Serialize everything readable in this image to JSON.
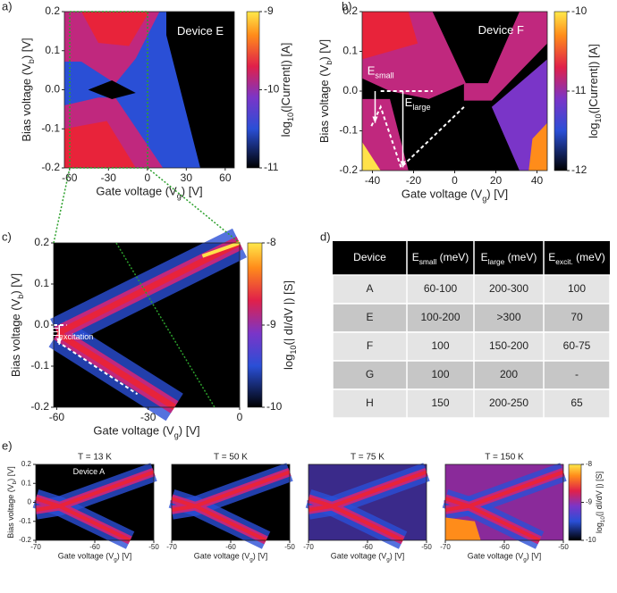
{
  "chart_data": [
    {
      "type": "heatmap",
      "label": "a)",
      "xlim": [
        -64,
        67
      ],
      "ylim": [
        -0.2,
        0.2
      ],
      "xticks": [
        -60,
        -30,
        0,
        30,
        60
      ],
      "yticks": [
        0.2,
        0.1,
        {
          "value": 0,
          "label": "0.0"
        },
        -0.1,
        -0.2
      ],
      "x_label": {
        "text": "Gate voltage (V",
        "sub": "g",
        "tail": ") [V]"
      },
      "y_label": {
        "text": "Bias voltage (V",
        "sub": "b",
        "tail": ") [V]"
      },
      "colorbar": {
        "lim": [
          -11,
          -9
        ],
        "ticks": [
          -9,
          -10,
          -11
        ],
        "label": {
          "text": "log",
          "sub": "10",
          "tail": "(|Current|) [A]"
        }
      },
      "annotations": [
        "Device E"
      ]
    },
    {
      "type": "heatmap",
      "label": "b)",
      "xlim": [
        -45,
        45
      ],
      "ylim": [
        -0.2,
        0.2
      ],
      "xticks": [
        -40,
        -20,
        0,
        20,
        40
      ],
      "yticks": [
        0.2,
        0.1,
        {
          "value": 0,
          "label": "0.0"
        },
        -0.1,
        -0.2
      ],
      "x_label": {
        "text": "Gate voltage (V",
        "sub": "g",
        "tail": ") [V]"
      },
      "y_label": {
        "text": "Bias voltage (V",
        "sub": "b",
        "tail": ") [V]"
      },
      "colorbar": {
        "lim": [
          -12,
          -10
        ],
        "ticks": [
          -10,
          -11,
          -12
        ],
        "label": {
          "text": "log",
          "sub": "10",
          "tail": "(|Current|) [A]"
        }
      },
      "annotations": [
        "Device F",
        {
          "text": "E",
          "sub": "small"
        },
        {
          "text": "E",
          "sub": "large"
        }
      ]
    },
    {
      "type": "heatmap",
      "label": "c)",
      "xlim": [
        -61,
        0
      ],
      "ylim": [
        -0.2,
        0.2
      ],
      "xticks": [
        -60,
        -30,
        0
      ],
      "yticks": [
        0.2,
        0.1,
        {
          "value": 0,
          "label": "0.0"
        },
        -0.1,
        -0.2
      ],
      "x_label": {
        "text": "Gate voltage (V",
        "sub": "g",
        "tail": ") [V]"
      },
      "y_label": {
        "text": "Bias voltage (V",
        "sub": "b",
        "tail": ") [V]"
      },
      "colorbar": {
        "lim": [
          -10,
          -8
        ],
        "ticks": [
          -8,
          -9,
          -10
        ],
        "label": {
          "text": "log",
          "sub": "10",
          "tail": "(| dI/dV |) [S]"
        }
      },
      "annotations": [
        {
          "text": "E",
          "sub": "excitation"
        }
      ]
    },
    {
      "type": "heatmap",
      "label": "e)",
      "title": "T = 13 K",
      "xlim": [
        -70,
        -50
      ],
      "ylim": [
        -0.2,
        0.2
      ],
      "xticks": [
        -70,
        -60,
        -50
      ],
      "yticks": [
        0.2,
        0.1,
        0,
        -0.1,
        -0.2
      ],
      "x_label": {
        "text": "Gate voltage (V",
        "sub": "g",
        "tail": ") [V]"
      },
      "y_label": {
        "text": "Bias voltage (V",
        "sub": "b",
        "tail": ") [V]"
      },
      "annotations": [
        "Device A"
      ]
    },
    {
      "type": "heatmap",
      "title": "T = 50 K",
      "xlim": [
        -70,
        -50
      ],
      "ylim": [
        -0.2,
        0.2
      ],
      "xticks": [
        -70,
        -60,
        -50
      ],
      "x_label": {
        "text": "Gate voltage (V",
        "sub": "g",
        "tail": ") [V]"
      }
    },
    {
      "type": "heatmap",
      "title": "T = 75 K",
      "xlim": [
        -70,
        -50
      ],
      "ylim": [
        -0.2,
        0.2
      ],
      "xticks": [
        -70,
        -60,
        -50
      ],
      "x_label": {
        "text": "Gate voltage (V",
        "sub": "g",
        "tail": ") [V]"
      }
    },
    {
      "type": "heatmap",
      "title": "T = 150 K",
      "xlim": [
        -70,
        -50
      ],
      "ylim": [
        -0.2,
        0.2
      ],
      "xticks": [
        -70,
        -60,
        -50
      ],
      "x_label": {
        "text": "Gate voltage (V",
        "sub": "g",
        "tail": ") [V]"
      },
      "colorbar": {
        "lim": [
          -10,
          -8
        ],
        "ticks": [
          -8,
          -9,
          -10
        ],
        "label": {
          "text": "log",
          "sub": "10",
          "tail": "(| dI/dV |) [S]"
        }
      }
    }
  ],
  "table": {
    "label": "d)",
    "header": [
      "Device",
      {
        "text": "E",
        "sub": "small",
        "tail": " (meV)"
      },
      {
        "text": "E",
        "sub": "large",
        "tail": " (meV)"
      },
      {
        "text": "E",
        "sub": "excit.",
        "tail": " (meV)"
      }
    ],
    "rows": [
      [
        "A",
        "60-100",
        "200-300",
        "100"
      ],
      [
        "E",
        "100-200",
        ">300",
        "70"
      ],
      [
        "F",
        "100",
        "150-200",
        "60-75"
      ],
      [
        "G",
        "100",
        "200",
        "-"
      ],
      [
        "H",
        "150",
        "200-250",
        "65"
      ]
    ]
  }
}
